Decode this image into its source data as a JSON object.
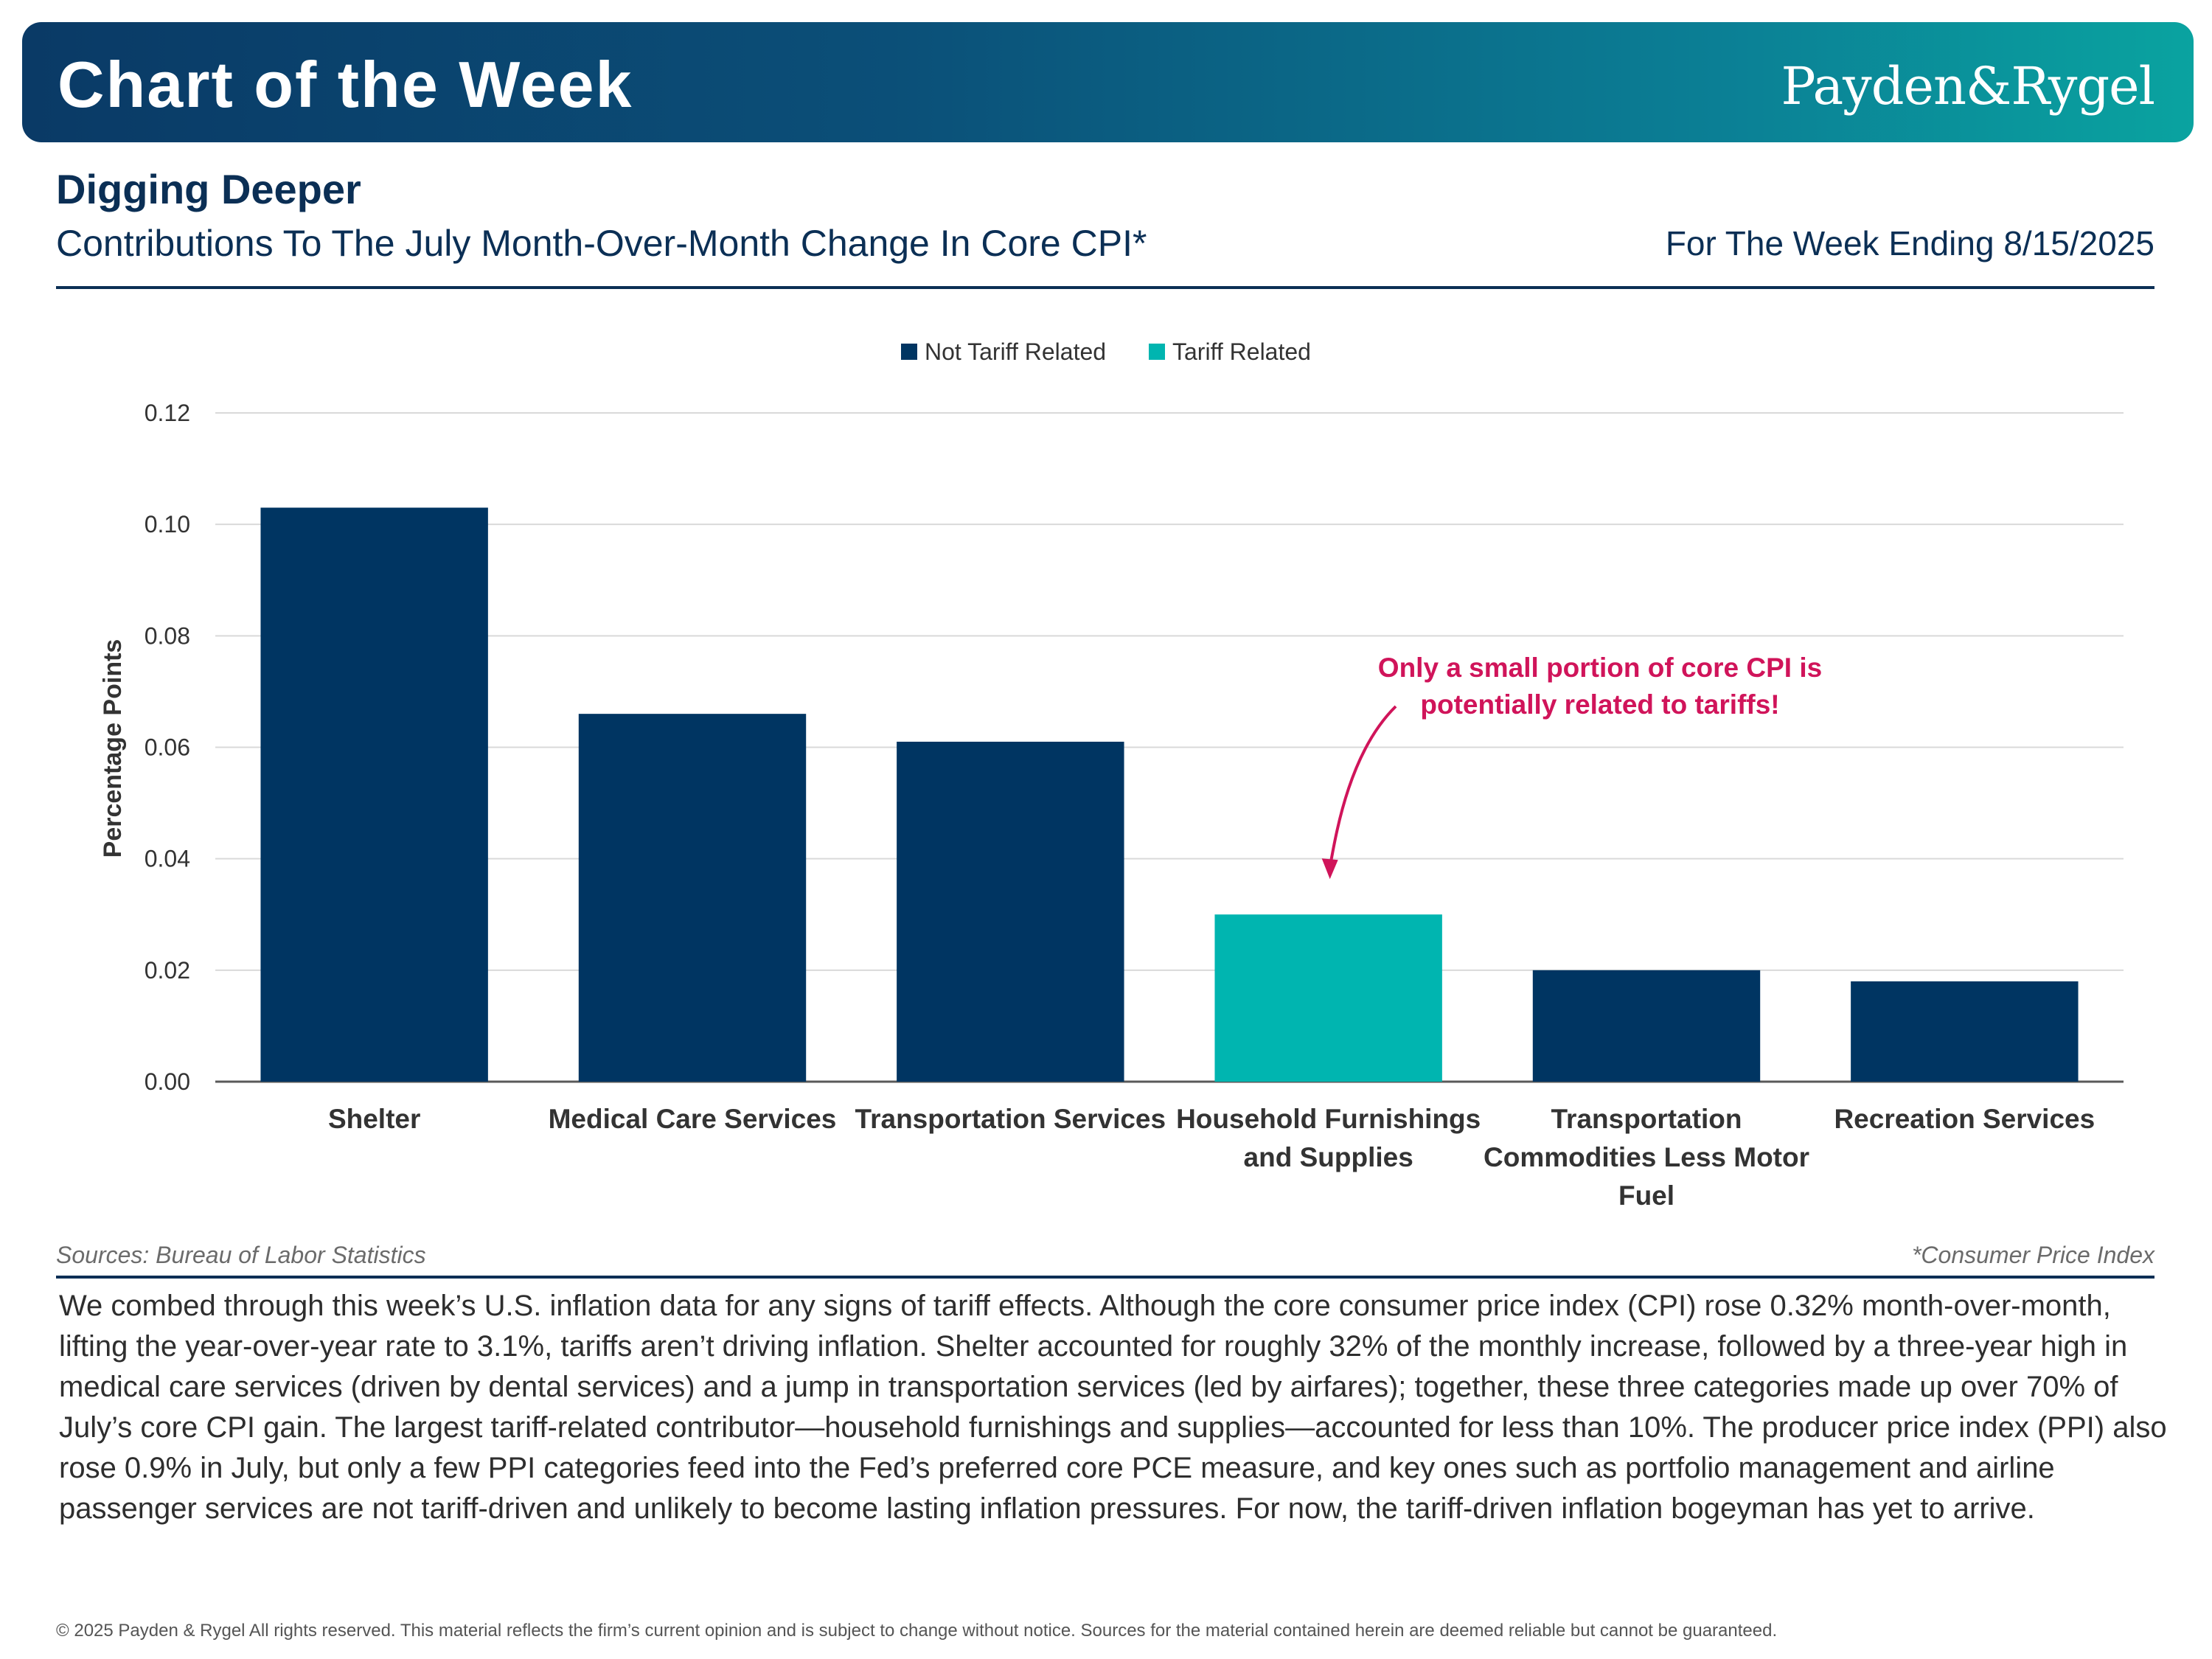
{
  "header": {
    "banner_title": "Chart of the Week",
    "logo_text": "Payden&Rygel"
  },
  "section": {
    "title": "Digging Deeper",
    "subtitle": "Contributions To The July Month-Over-Month Change In Core CPI*",
    "week_ending": "For The Week Ending 8/15/2025"
  },
  "colors": {
    "not_tariff": "#003562",
    "tariff": "#00b5b0",
    "annotation": "#d0145a",
    "gridline": "#d9d9d9"
  },
  "chart_data": {
    "type": "bar",
    "title": "",
    "xlabel": "",
    "ylabel": "Percentage Points",
    "ylim": [
      0,
      0.12
    ],
    "yticks": [
      "0.00",
      "0.02",
      "0.04",
      "0.06",
      "0.08",
      "0.10",
      "0.12"
    ],
    "grid": true,
    "legend_position": "top-center",
    "legend": [
      {
        "name": "Not Tariff Related",
        "color": "#003562"
      },
      {
        "name": "Tariff Related",
        "color": "#00b5b0"
      }
    ],
    "categories": [
      [
        "Shelter"
      ],
      [
        "Medical Care Services"
      ],
      [
        "Transportation Services"
      ],
      [
        "Household Furnishings",
        "and Supplies"
      ],
      [
        "Transportation",
        "Commodities Less Motor",
        "Fuel"
      ],
      [
        "Recreation Services"
      ]
    ],
    "values": [
      0.103,
      0.066,
      0.061,
      0.03,
      0.02,
      0.018
    ],
    "series_by_bar": [
      "Not Tariff Related",
      "Not Tariff Related",
      "Not Tariff Related",
      "Tariff Related",
      "Not Tariff Related",
      "Not Tariff Related"
    ],
    "annotation": {
      "lines": [
        "Only a small portion of core CPI is",
        "potentially related to tariffs!"
      ],
      "points_to_category": "Household Furnishings and Supplies"
    }
  },
  "footer": {
    "sources": "Sources: Bureau of Labor Statistics",
    "footnote": "*Consumer Price Index",
    "commentary": "We combed through this week’s U.S. inflation data for any signs of tariff effects. Although the core consumer price index (CPI) rose 0.32% month-over-month, lifting the year-over-year rate to 3.1%, tariffs aren’t driving inflation. Shelter accounted for roughly 32% of the monthly increase, followed by a three-year high in medical care services (driven by dental services) and a jump in transportation services (led by airfares); together, these three categories made up over 70% of July’s core CPI gain. The largest tariff-related contributor—household furnishings and supplies—accounted for less than 10%. The producer price index (PPI) also rose 0.9% in July, but only a few PPI categories feed into the Fed’s preferred core PCE measure, and key ones such as portfolio management and airline passenger services are not tariff-driven and unlikely to become lasting inflation pressures. For now, the tariff-driven inflation bogeyman has yet to arrive.",
    "copyright": "© 2025 Payden & Rygel All rights reserved. This material reflects the firm’s current opinion and is subject to change without notice. Sources for the material contained herein are deemed reliable but cannot be guaranteed."
  }
}
